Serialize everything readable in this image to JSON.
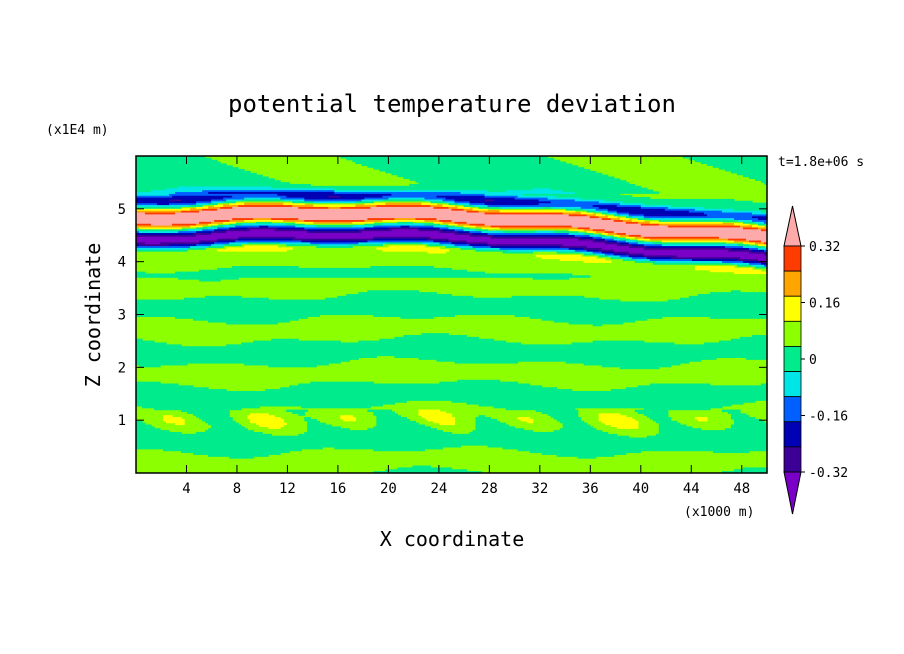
{
  "chart_data": {
    "type": "heatmap",
    "title": "potential temperature deviation",
    "xlabel": "X coordinate",
    "ylabel": "Z coordinate",
    "x_unit": "(x1000 m)",
    "y_unit": "(x1E4 m)",
    "time_label": "t=1.8e+06 s",
    "xlim": [
      0,
      50
    ],
    "ylim": [
      0,
      6
    ],
    "x_ticks": [
      "4",
      "8",
      "12",
      "16",
      "20",
      "24",
      "28",
      "32",
      "36",
      "40",
      "44",
      "48"
    ],
    "y_ticks": [
      "1",
      "2",
      "3",
      "4",
      "5"
    ],
    "colorbar": {
      "levels": [
        -0.4,
        -0.32,
        -0.24,
        -0.16,
        -0.08,
        0,
        0.08,
        0.16,
        0.24,
        0.32,
        0.4
      ],
      "colors": [
        "#7a00c8",
        "#3c0096",
        "#0000b4",
        "#0060ff",
        "#00e6e6",
        "#00eb8c",
        "#8cff00",
        "#ffff00",
        "#ffa500",
        "#ff3c00",
        "#ffaaaa"
      ],
      "tick_labels": [
        "0.32",
        "0.16",
        "0",
        "-0.16",
        "-0.32"
      ],
      "tick_values": [
        0.32,
        0.16,
        0,
        -0.16,
        -0.32
      ]
    },
    "field_description_bands": [
      {
        "z_center": 5.2,
        "value": -0.36
      },
      {
        "z_center": 4.95,
        "value": 0.36
      },
      {
        "z_center": 4.75,
        "value": -0.36
      },
      {
        "z_center": 4.55,
        "value": 0.36
      },
      {
        "z_center": 4.35,
        "value": -0.36
      },
      {
        "z_center": 4.1,
        "value": 0.36
      },
      {
        "z_center": 3.95,
        "value": -0.28
      }
    ]
  }
}
